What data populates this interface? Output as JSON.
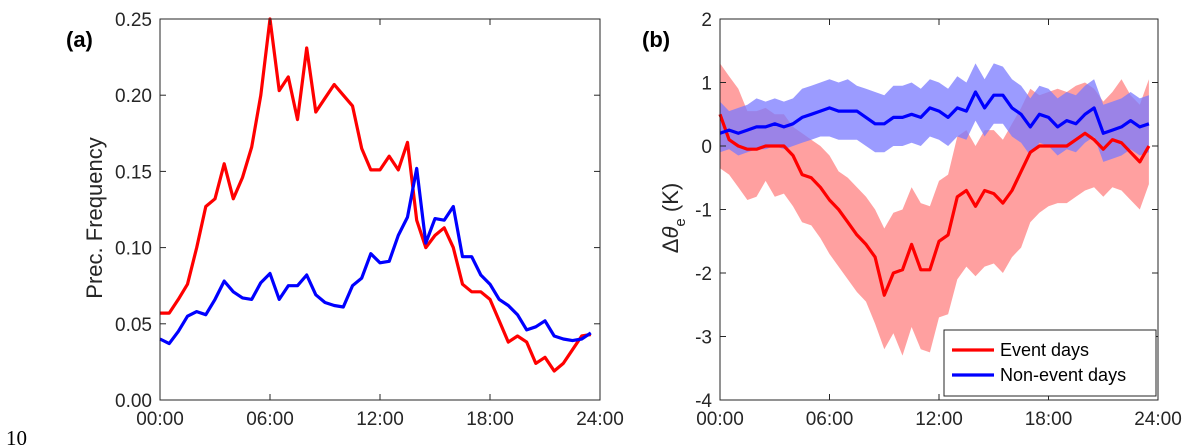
{
  "page_number": "10",
  "chart_data": [
    {
      "type": "line",
      "panel_label": "(a)",
      "ylabel": "Prec. Frequency",
      "xlabel": "",
      "xlim": [
        0,
        24
      ],
      "ylim": [
        0,
        0.25
      ],
      "x_ticks": [
        "00:00",
        "06:00",
        "12:00",
        "18:00",
        "24:00"
      ],
      "y_ticks": [
        "0.00",
        "0.05",
        "0.10",
        "0.15",
        "0.20",
        "0.25"
      ],
      "grid": false,
      "x": [
        0,
        0.5,
        1,
        1.5,
        2,
        2.5,
        3,
        3.5,
        4,
        4.5,
        5,
        5.5,
        6,
        6.5,
        7,
        7.5,
        8,
        8.5,
        9,
        9.5,
        10,
        10.5,
        11,
        11.5,
        12,
        12.5,
        13,
        13.5,
        14,
        14.5,
        15,
        15.5,
        16,
        16.5,
        17,
        17.5,
        18,
        18.5,
        19,
        19.5,
        20,
        20.5,
        21,
        21.5,
        22,
        22.5,
        23,
        23.5
      ],
      "series": [
        {
          "color": "#ff0000",
          "values": [
            0.057,
            0.057,
            0.066,
            0.076,
            0.1,
            0.127,
            0.132,
            0.155,
            0.132,
            0.146,
            0.166,
            0.2,
            0.25,
            0.203,
            0.212,
            0.184,
            0.231,
            0.189,
            0.198,
            0.207,
            0.2,
            0.193,
            0.165,
            0.151,
            0.151,
            0.16,
            0.151,
            0.169,
            0.118,
            0.1,
            0.108,
            0.113,
            0.1,
            0.076,
            0.071,
            0.071,
            0.066,
            0.052,
            0.038,
            0.042,
            0.038,
            0.024,
            0.028,
            0.019,
            0.024,
            0.033,
            0.042,
            0.043
          ]
        },
        {
          "color": "#0000ff",
          "values": [
            0.04,
            0.037,
            0.045,
            0.055,
            0.058,
            0.056,
            0.066,
            0.078,
            0.071,
            0.067,
            0.066,
            0.077,
            0.083,
            0.066,
            0.075,
            0.075,
            0.082,
            0.069,
            0.064,
            0.062,
            0.061,
            0.075,
            0.08,
            0.096,
            0.09,
            0.091,
            0.108,
            0.12,
            0.152,
            0.103,
            0.119,
            0.118,
            0.127,
            0.094,
            0.094,
            0.082,
            0.076,
            0.066,
            0.062,
            0.056,
            0.046,
            0.048,
            0.052,
            0.042,
            0.04,
            0.039,
            0.04,
            0.044
          ]
        }
      ]
    },
    {
      "type": "line",
      "panel_label": "(b)",
      "ylabel": "Δθe (K)",
      "ylabel_parts": {
        "delta": "Δ",
        "theta": "θ",
        "sub": "e",
        "unit": " (K)"
      },
      "xlabel": "",
      "xlim": [
        0,
        24
      ],
      "ylim": [
        -4,
        2
      ],
      "x_ticks": [
        "00:00",
        "06:00",
        "12:00",
        "18:00",
        "24:00"
      ],
      "y_ticks": [
        "-4",
        "-3",
        "-2",
        "-1",
        "0",
        "1",
        "2"
      ],
      "grid": false,
      "legend_position": "bottom-right",
      "x": [
        0,
        0.5,
        1,
        1.5,
        2,
        2.5,
        3,
        3.5,
        4,
        4.5,
        5,
        5.5,
        6,
        6.5,
        7,
        7.5,
        8,
        8.5,
        9,
        9.5,
        10,
        10.5,
        11,
        11.5,
        12,
        12.5,
        13,
        13.5,
        14,
        14.5,
        15,
        15.5,
        16,
        16.5,
        17,
        17.5,
        18,
        18.5,
        19,
        19.5,
        20,
        20.5,
        21,
        21.5,
        22,
        22.5,
        23,
        23.5
      ],
      "series": [
        {
          "name": "Event days",
          "color": "#ff0000",
          "band_color": "#ff8080",
          "values": [
            0.5,
            0.1,
            0,
            -0.05,
            -0.05,
            0,
            0,
            0,
            -0.15,
            -0.45,
            -0.5,
            -0.65,
            -0.85,
            -1,
            -1.2,
            -1.4,
            -1.55,
            -1.75,
            -2.35,
            -2,
            -1.95,
            -1.55,
            -1.95,
            -1.95,
            -1.5,
            -1.4,
            -0.8,
            -0.7,
            -0.95,
            -0.7,
            -0.75,
            -0.9,
            -0.7,
            -0.4,
            -0.1,
            0,
            0,
            0,
            0,
            0.1,
            0.2,
            0.1,
            -0.05,
            0.1,
            0.05,
            -0.1,
            -0.25,
            0
          ],
          "upper": [
            1.3,
            1.1,
            0.9,
            0.55,
            0.55,
            0.6,
            0.5,
            0.5,
            0.3,
            0.2,
            0.1,
            0,
            -0.15,
            -0.4,
            -0.5,
            -0.65,
            -0.8,
            -1,
            -1.3,
            -1.05,
            -1.0,
            -0.65,
            -0.9,
            -0.95,
            -0.55,
            -0.45,
            0.15,
            0.25,
            0,
            0.25,
            0.25,
            0.1,
            0.35,
            0.6,
            0.9,
            0.8,
            0.85,
            0.9,
            0.85,
            0.95,
            1.0,
            0.9,
            0.7,
            0.85,
            1.05,
            0.8,
            0.65,
            1.05
          ],
          "lower": [
            -0.35,
            -0.45,
            -0.65,
            -0.85,
            -0.8,
            -0.55,
            -0.8,
            -0.75,
            -0.95,
            -1.2,
            -1.25,
            -1.45,
            -1.7,
            -1.9,
            -2.1,
            -2.3,
            -2.45,
            -2.8,
            -3.2,
            -2.95,
            -3.3,
            -2.85,
            -3.2,
            -3.25,
            -2.7,
            -2.65,
            -2.1,
            -1.9,
            -2.05,
            -1.9,
            -1.85,
            -2,
            -1.75,
            -1.6,
            -1.2,
            -1.05,
            -0.95,
            -0.9,
            -0.9,
            -0.8,
            -0.7,
            -0.65,
            -0.8,
            -0.65,
            -0.7,
            -0.85,
            -1.0,
            -0.6
          ]
        },
        {
          "name": "Non-event days",
          "color": "#0000ff",
          "band_color": "#7a7aff",
          "values": [
            0.2,
            0.25,
            0.2,
            0.25,
            0.3,
            0.3,
            0.35,
            0.3,
            0.35,
            0.45,
            0.5,
            0.55,
            0.6,
            0.55,
            0.55,
            0.55,
            0.45,
            0.35,
            0.35,
            0.45,
            0.45,
            0.5,
            0.45,
            0.6,
            0.55,
            0.45,
            0.6,
            0.55,
            0.85,
            0.6,
            0.8,
            0.8,
            0.6,
            0.5,
            0.3,
            0.5,
            0.45,
            0.3,
            0.4,
            0.35,
            0.5,
            0.6,
            0.2,
            0.25,
            0.3,
            0.4,
            0.3,
            0.35
          ],
          "upper": [
            0.7,
            0.55,
            0.6,
            0.65,
            0.75,
            0.7,
            0.75,
            0.7,
            0.75,
            0.9,
            0.95,
            1.0,
            1.05,
            1.0,
            1.05,
            0.95,
            0.9,
            0.85,
            0.8,
            0.95,
            0.95,
            1.0,
            0.9,
            1.05,
            1.0,
            0.9,
            1.1,
            1.0,
            1.3,
            1.05,
            1.3,
            1.25,
            1.05,
            0.95,
            0.75,
            0.95,
            0.9,
            0.75,
            0.85,
            0.8,
            0.95,
            1.05,
            0.65,
            0.7,
            0.75,
            0.85,
            0.75,
            0.8
          ],
          "lower": [
            -0.1,
            -0.05,
            -0.15,
            -0.1,
            -0.05,
            -0.05,
            0,
            -0.05,
            0,
            0.05,
            0.1,
            0.15,
            0.15,
            0.1,
            0.1,
            0.1,
            0,
            -0.1,
            -0.1,
            0,
            0,
            0.05,
            0,
            0.15,
            0.1,
            0,
            0.15,
            0.1,
            0.4,
            0.15,
            0.35,
            0.35,
            0.15,
            0.05,
            -0.15,
            0.05,
            0,
            -0.15,
            -0.05,
            -0.1,
            0.05,
            0.15,
            -0.25,
            -0.2,
            -0.15,
            -0.05,
            -0.15,
            -0.1
          ]
        }
      ]
    }
  ]
}
